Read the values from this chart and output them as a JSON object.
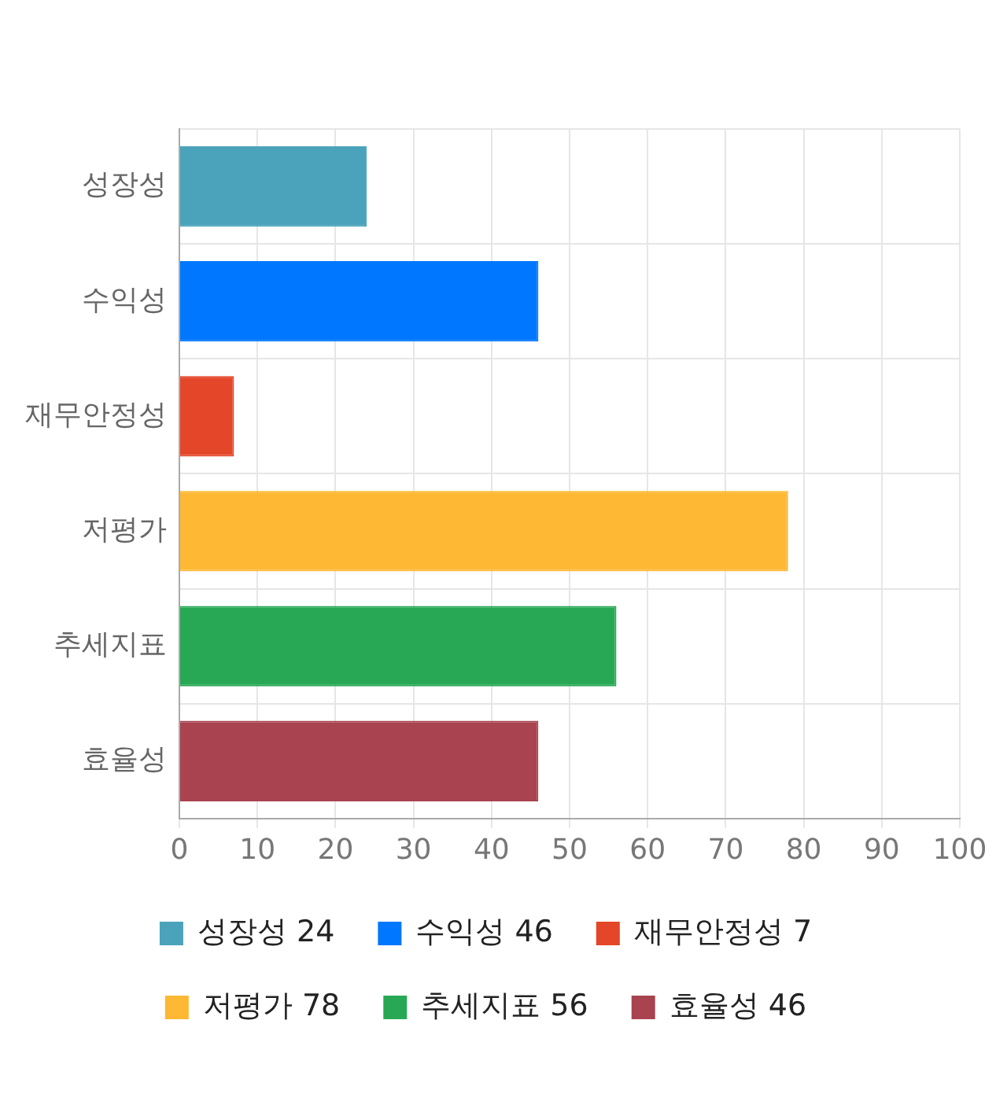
{
  "chart_data": {
    "type": "bar",
    "orientation": "horizontal",
    "categories": [
      "성장성",
      "수익성",
      "재무안정성",
      "저평가",
      "추세지표",
      "효율성"
    ],
    "series": [
      {
        "name": "성장성 24",
        "color": "#4aa3ba",
        "values": [
          24,
          null,
          null,
          null,
          null,
          null
        ]
      },
      {
        "name": "수익성 46",
        "color": "#0077ff",
        "values": [
          null,
          46,
          null,
          null,
          null,
          null
        ]
      },
      {
        "name": "재무안정성 7",
        "color": "#e4462a",
        "values": [
          null,
          null,
          7,
          null,
          null,
          null
        ]
      },
      {
        "name": "저평가 78",
        "color": "#ffb833",
        "values": [
          null,
          null,
          null,
          78,
          null,
          null
        ]
      },
      {
        "name": "추세지표 56",
        "color": "#28a855",
        "values": [
          null,
          null,
          null,
          null,
          56,
          null
        ]
      },
      {
        "name": "효율성 46",
        "color": "#a8434f",
        "values": [
          null,
          null,
          null,
          null,
          null,
          46
        ]
      }
    ],
    "xlim": [
      0,
      100
    ],
    "xticks": [
      0,
      10,
      20,
      30,
      40,
      50,
      60,
      70,
      80,
      90,
      100
    ],
    "grid": true,
    "legend": "bottom"
  }
}
